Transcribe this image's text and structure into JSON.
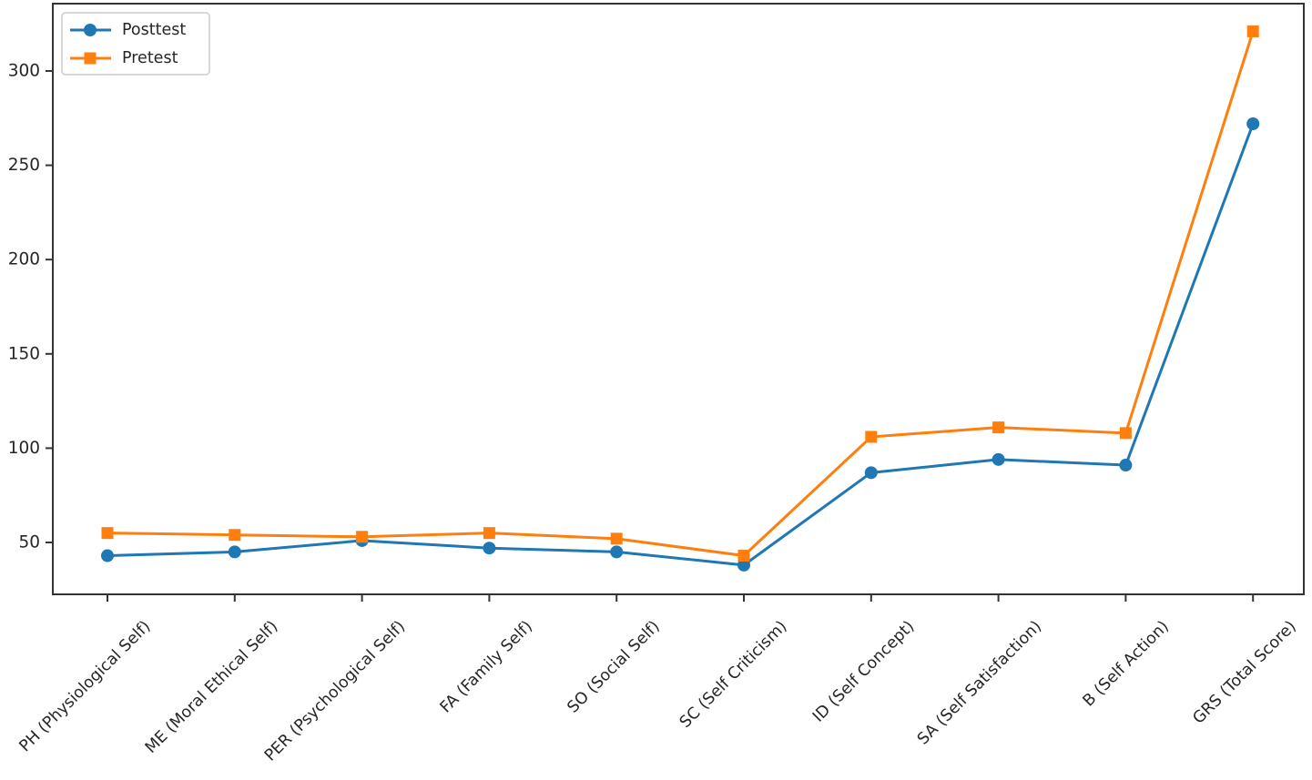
{
  "chart_data": {
    "type": "line",
    "title": "",
    "xlabel": "",
    "ylabel": "",
    "categories": [
      "PH (Physiological Self)",
      "ME (Moral Ethical Self)",
      "PER (Psychological Self)",
      "FA (Family Self)",
      "SO (Social Self)",
      "SC (Self Criticism)",
      "ID (Self Concept)",
      "SA (Self Satisfaction)",
      "B (Self Action)",
      "GRS (Total Score)"
    ],
    "series": [
      {
        "name": "Posttest",
        "marker": "circle",
        "color": "#1f77b4",
        "values": [
          43,
          45,
          51,
          47,
          45,
          38,
          87,
          94,
          91,
          272
        ]
      },
      {
        "name": "Pretest",
        "marker": "square",
        "color": "#ff7f0e",
        "values": [
          55,
          54,
          53,
          55,
          52,
          43,
          106,
          111,
          108,
          321
        ]
      }
    ],
    "yticks": [
      50,
      100,
      150,
      200,
      250,
      300
    ],
    "ylim": [
      22.5,
      335.7
    ],
    "grid": false,
    "legend_position": "upper left",
    "axis_color": "#333333",
    "text_color": "#262626",
    "plot_background": "#ffffff"
  }
}
